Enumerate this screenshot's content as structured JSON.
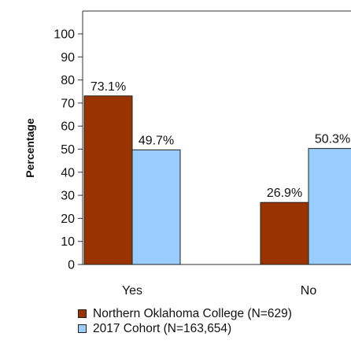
{
  "chart_data": {
    "type": "bar",
    "categories": [
      "Yes",
      "No"
    ],
    "series": [
      {
        "name": "Northern Oklahoma College (N=629)",
        "values": [
          73.1,
          26.9
        ],
        "labels": [
          "73.1%",
          "26.9%"
        ],
        "color": "#993300"
      },
      {
        "name": "2017 Cohort (N=163,654)",
        "values": [
          49.7,
          50.3
        ],
        "labels": [
          "49.7%",
          "50.3%"
        ],
        "color": "#99ccff"
      }
    ],
    "ylabel": "Percentage",
    "xlabel": "",
    "ylim": [
      0,
      100
    ],
    "yticks": [
      "0",
      "10",
      "20",
      "30",
      "40",
      "50",
      "60",
      "70",
      "80",
      "90",
      "100"
    ],
    "grid": false,
    "legend_position": "bottom"
  }
}
